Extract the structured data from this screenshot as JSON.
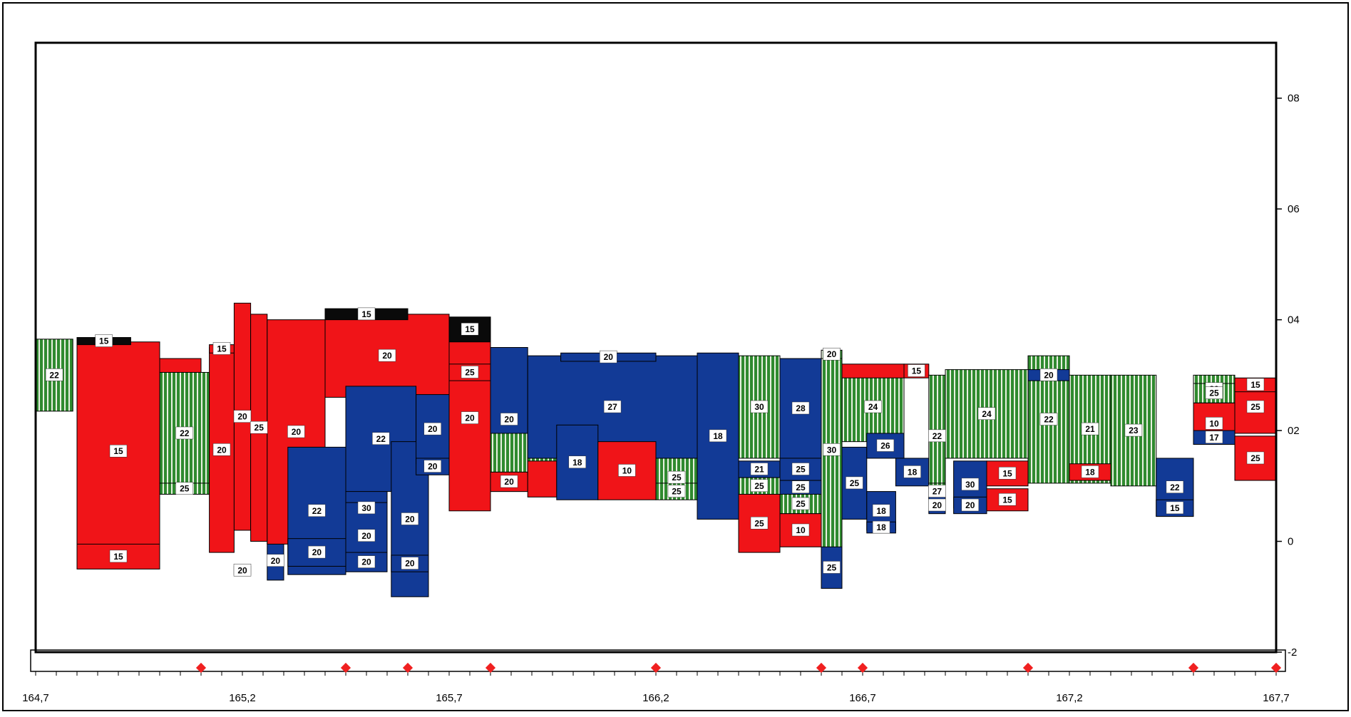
{
  "colors": {
    "red": "#f01418",
    "blue": "#123a96",
    "green": "#2f8a2f",
    "black": "#0a0a0a",
    "marker": "#f02020"
  },
  "chart_data": {
    "type": "bar",
    "title": "",
    "xlabel": "",
    "ylabel": "",
    "xlim": [
      164.7,
      167.7
    ],
    "ylim": [
      -2,
      9
    ],
    "x_ticks": [
      "164,7",
      "165,2",
      "165,7",
      "166,2",
      "166,7",
      "167,2",
      "167,7"
    ],
    "x_tick_values": [
      164.7,
      165.2,
      165.7,
      166.2,
      166.7,
      167.2,
      167.7
    ],
    "y_ticks": [
      "-2",
      "0",
      "02",
      "04",
      "06",
      "08"
    ],
    "y_tick_values": [
      -2,
      0,
      2,
      4,
      6,
      8
    ],
    "markers_x": [
      165.1,
      165.45,
      165.6,
      165.8,
      166.2,
      166.6,
      166.7,
      167.1,
      167.5,
      167.7
    ],
    "blocks": [
      {
        "x0": 164.7,
        "x1": 164.79,
        "y0": 2.35,
        "y1": 3.65,
        "fill": "green",
        "label": "22"
      },
      {
        "x0": 164.8,
        "x1": 165.0,
        "y0": -0.35,
        "y1": 3.6,
        "fill": "red",
        "label": "15"
      },
      {
        "x0": 164.8,
        "x1": 165.0,
        "y0": -0.5,
        "y1": -0.05,
        "fill": "red",
        "label": "15"
      },
      {
        "x0": 164.8,
        "x1": 164.93,
        "y0": 3.55,
        "y1": 3.68,
        "fill": "black",
        "label": "15"
      },
      {
        "x0": 165.0,
        "x1": 165.12,
        "y0": 0.85,
        "y1": 3.05,
        "fill": "green",
        "label": "22"
      },
      {
        "x0": 165.0,
        "x1": 165.1,
        "y0": 3.05,
        "y1": 3.3,
        "fill": "red",
        "label": ""
      },
      {
        "x0": 165.0,
        "x1": 165.12,
        "y0": 0.85,
        "y1": 1.05,
        "fill": "green",
        "label": "25"
      },
      {
        "x0": 165.12,
        "x1": 165.18,
        "y0": -0.2,
        "y1": 3.5,
        "fill": "red",
        "label": "20"
      },
      {
        "x0": 165.12,
        "x1": 165.18,
        "y0": 3.4,
        "y1": 3.55,
        "fill": "red",
        "label": "15"
      },
      {
        "x0": 165.18,
        "x1": 165.22,
        "y0": 0.2,
        "y1": 4.3,
        "fill": "red",
        "label": "20"
      },
      {
        "x0": 165.18,
        "x1": 165.22,
        "y0": -0.6,
        "y1": -0.45,
        "fill": "red",
        "label": "20"
      },
      {
        "x0": 165.22,
        "x1": 165.26,
        "y0": 0.0,
        "y1": 4.1,
        "fill": "red",
        "label": "25"
      },
      {
        "x0": 165.26,
        "x1": 165.3,
        "y0": -0.7,
        "y1": 0.0,
        "fill": "blue",
        "label": "20"
      },
      {
        "x0": 165.26,
        "x1": 165.4,
        "y0": -0.05,
        "y1": 4.0,
        "fill": "red",
        "label": "20"
      },
      {
        "x0": 165.31,
        "x1": 165.45,
        "y0": -0.6,
        "y1": 1.7,
        "fill": "blue",
        "label": "22"
      },
      {
        "x0": 165.4,
        "x1": 165.7,
        "y0": 2.6,
        "y1": 4.1,
        "fill": "red",
        "label": "20"
      },
      {
        "x0": 165.4,
        "x1": 165.6,
        "y0": 4.0,
        "y1": 4.2,
        "fill": "black",
        "label": "15"
      },
      {
        "x0": 165.45,
        "x1": 165.55,
        "y0": -0.5,
        "y1": 1.7,
        "fill": "blue",
        "label": "30"
      },
      {
        "x0": 165.45,
        "x1": 165.55,
        "y0": -0.5,
        "y1": 0.7,
        "fill": "blue",
        "label": "20"
      },
      {
        "x0": 165.45,
        "x1": 165.55,
        "y0": -0.55,
        "y1": -0.2,
        "fill": "blue",
        "label": "20"
      },
      {
        "x0": 165.31,
        "x1": 165.45,
        "y0": -0.45,
        "y1": 0.05,
        "fill": "blue",
        "label": "20"
      },
      {
        "x0": 165.45,
        "x1": 165.62,
        "y0": 0.9,
        "y1": 2.8,
        "fill": "blue",
        "label": "22"
      },
      {
        "x0": 165.56,
        "x1": 165.65,
        "y0": -1.0,
        "y1": 1.8,
        "fill": "blue",
        "label": "20"
      },
      {
        "x0": 165.56,
        "x1": 165.65,
        "y0": -0.55,
        "y1": -0.25,
        "fill": "blue",
        "label": "20"
      },
      {
        "x0": 165.62,
        "x1": 165.7,
        "y0": 1.4,
        "y1": 2.65,
        "fill": "blue",
        "label": "20"
      },
      {
        "x0": 165.62,
        "x1": 165.7,
        "y0": 1.2,
        "y1": 1.5,
        "fill": "blue",
        "label": "20"
      },
      {
        "x0": 165.7,
        "x1": 165.8,
        "y0": 0.55,
        "y1": 3.9,
        "fill": "red",
        "label": "20"
      },
      {
        "x0": 165.7,
        "x1": 165.8,
        "y0": 3.6,
        "y1": 4.05,
        "fill": "black",
        "label": "15"
      },
      {
        "x0": 165.7,
        "x1": 165.8,
        "y0": 2.9,
        "y1": 3.2,
        "fill": "red",
        "label": "25"
      },
      {
        "x0": 165.8,
        "x1": 165.89,
        "y0": 0.9,
        "y1": 3.5,
        "fill": "blue",
        "label": "20"
      },
      {
        "x0": 165.8,
        "x1": 165.89,
        "y0": 1.25,
        "y1": 1.95,
        "fill": "green",
        "label": ""
      },
      {
        "x0": 165.8,
        "x1": 165.89,
        "y0": 0.9,
        "y1": 1.25,
        "fill": "red",
        "label": "20"
      },
      {
        "x0": 165.89,
        "x1": 165.96,
        "y0": 1.2,
        "y1": 1.95,
        "fill": "green",
        "label": ""
      },
      {
        "x0": 165.89,
        "x1": 165.96,
        "y0": 0.8,
        "y1": 1.45,
        "fill": "red",
        "label": ""
      },
      {
        "x0": 165.89,
        "x1": 166.3,
        "y0": 1.5,
        "y1": 3.35,
        "fill": "blue",
        "label": "27"
      },
      {
        "x0": 165.96,
        "x1": 166.06,
        "y0": 0.75,
        "y1": 2.1,
        "fill": "blue",
        "label": "18"
      },
      {
        "x0": 166.06,
        "x1": 166.2,
        "y0": 0.75,
        "y1": 1.8,
        "fill": "red",
        "label": "10"
      },
      {
        "x0": 166.2,
        "x1": 166.3,
        "y0": 0.8,
        "y1": 1.5,
        "fill": "green",
        "label": "25"
      },
      {
        "x0": 166.2,
        "x1": 166.3,
        "y0": 0.75,
        "y1": 1.05,
        "fill": "green",
        "label": "25"
      },
      {
        "x0": 166.3,
        "x1": 166.4,
        "y0": 0.4,
        "y1": 3.4,
        "fill": "blue",
        "label": "18"
      },
      {
        "x0": 166.4,
        "x1": 166.5,
        "y0": 1.5,
        "y1": 3.35,
        "fill": "green",
        "label": "30"
      },
      {
        "x0": 166.4,
        "x1": 166.5,
        "y0": 1.15,
        "y1": 1.45,
        "fill": "blue",
        "label": "21"
      },
      {
        "x0": 166.4,
        "x1": 166.5,
        "y0": 0.85,
        "y1": 1.15,
        "fill": "green",
        "label": "25"
      },
      {
        "x0": 166.4,
        "x1": 166.5,
        "y0": -0.2,
        "y1": 0.85,
        "fill": "red",
        "label": "25"
      },
      {
        "x0": 166.5,
        "x1": 166.6,
        "y0": 1.5,
        "y1": 3.3,
        "fill": "blue",
        "label": "28"
      },
      {
        "x0": 166.5,
        "x1": 166.6,
        "y0": 1.1,
        "y1": 1.5,
        "fill": "blue",
        "label": "25"
      },
      {
        "x0": 166.5,
        "x1": 166.6,
        "y0": 0.85,
        "y1": 1.1,
        "fill": "blue",
        "label": "25"
      },
      {
        "x0": 166.5,
        "x1": 166.6,
        "y0": 0.5,
        "y1": 0.85,
        "fill": "green",
        "label": "25"
      },
      {
        "x0": 166.5,
        "x1": 166.6,
        "y0": -0.1,
        "y1": 0.5,
        "fill": "red",
        "label": "10"
      },
      {
        "x0": 166.6,
        "x1": 166.65,
        "y0": -0.15,
        "y1": 3.45,
        "fill": "green",
        "label": "30"
      },
      {
        "x0": 166.6,
        "x1": 166.65,
        "y0": 3.3,
        "y1": 3.45,
        "fill": "green",
        "label": "20"
      },
      {
        "x0": 166.6,
        "x1": 166.65,
        "y0": -0.85,
        "y1": -0.1,
        "fill": "blue",
        "label": "25"
      },
      {
        "x0": 166.65,
        "x1": 166.8,
        "y0": 1.8,
        "y1": 3.05,
        "fill": "green",
        "label": "24"
      },
      {
        "x0": 166.65,
        "x1": 166.8,
        "y0": 2.95,
        "y1": 3.2,
        "fill": "red",
        "label": ""
      },
      {
        "x0": 166.8,
        "x1": 166.86,
        "y0": 2.95,
        "y1": 3.2,
        "fill": "red",
        "label": "15"
      },
      {
        "x0": 166.65,
        "x1": 166.71,
        "y0": 0.4,
        "y1": 1.7,
        "fill": "blue",
        "label": "25"
      },
      {
        "x0": 166.71,
        "x1": 166.8,
        "y0": 1.5,
        "y1": 1.95,
        "fill": "blue",
        "label": "26"
      },
      {
        "x0": 166.78,
        "x1": 166.86,
        "y0": 1.0,
        "y1": 1.5,
        "fill": "blue",
        "label": "18"
      },
      {
        "x0": 166.71,
        "x1": 166.78,
        "y0": 0.2,
        "y1": 0.9,
        "fill": "blue",
        "label": "18"
      },
      {
        "x0": 166.71,
        "x1": 166.78,
        "y0": 0.15,
        "y1": 0.35,
        "fill": "blue",
        "label": "18"
      },
      {
        "x0": 166.86,
        "x1": 166.9,
        "y0": 0.8,
        "y1": 3.0,
        "fill": "green",
        "label": "22"
      },
      {
        "x0": 166.86,
        "x1": 166.9,
        "y0": 0.75,
        "y1": 1.05,
        "fill": "green",
        "label": "27"
      },
      {
        "x0": 166.86,
        "x1": 166.9,
        "y0": 0.5,
        "y1": 0.8,
        "fill": "blue",
        "label": "20"
      },
      {
        "x0": 166.9,
        "x1": 167.1,
        "y0": 1.5,
        "y1": 3.1,
        "fill": "green",
        "label": "24"
      },
      {
        "x0": 166.92,
        "x1": 167.0,
        "y0": 0.6,
        "y1": 1.45,
        "fill": "blue",
        "label": "30"
      },
      {
        "x0": 166.92,
        "x1": 167.0,
        "y0": 0.5,
        "y1": 0.8,
        "fill": "blue",
        "label": "20"
      },
      {
        "x0": 167.0,
        "x1": 167.1,
        "y0": 1.0,
        "y1": 1.45,
        "fill": "red",
        "label": "15"
      },
      {
        "x0": 167.0,
        "x1": 167.1,
        "y0": 0.55,
        "y1": 0.95,
        "fill": "red",
        "label": "15"
      },
      {
        "x0": 167.1,
        "x1": 167.2,
        "y0": 1.05,
        "y1": 3.35,
        "fill": "green",
        "label": "22"
      },
      {
        "x0": 167.2,
        "x1": 167.3,
        "y0": 1.05,
        "y1": 3.0,
        "fill": "green",
        "label": "21"
      },
      {
        "x0": 167.2,
        "x1": 167.3,
        "y0": 1.1,
        "y1": 1.4,
        "fill": "red",
        "label": "18"
      },
      {
        "x0": 167.3,
        "x1": 167.41,
        "y0": 1.0,
        "y1": 3.0,
        "fill": "green",
        "label": "23"
      },
      {
        "x0": 167.41,
        "x1": 167.5,
        "y0": 0.45,
        "y1": 1.5,
        "fill": "blue",
        "label": "22"
      },
      {
        "x0": 167.41,
        "x1": 167.5,
        "y0": 0.45,
        "y1": 0.75,
        "fill": "blue",
        "label": "15"
      },
      {
        "x0": 167.5,
        "x1": 167.6,
        "y0": 1.75,
        "y1": 2.5,
        "fill": "red",
        "label": "10"
      },
      {
        "x0": 167.5,
        "x1": 167.6,
        "y0": 1.75,
        "y1": 2.0,
        "fill": "blue",
        "label": "17"
      },
      {
        "x0": 167.5,
        "x1": 167.6,
        "y0": 2.5,
        "y1": 3.0,
        "fill": "green",
        "label": "20"
      },
      {
        "x0": 167.5,
        "x1": 167.6,
        "y0": 2.5,
        "y1": 2.85,
        "fill": "green",
        "label": "25"
      },
      {
        "x0": 167.6,
        "x1": 167.7,
        "y0": 1.95,
        "y1": 2.9,
        "fill": "red",
        "label": "25"
      },
      {
        "x0": 167.6,
        "x1": 167.7,
        "y0": 2.7,
        "y1": 2.95,
        "fill": "red",
        "label": "15"
      },
      {
        "x0": 167.6,
        "x1": 167.7,
        "y0": 1.1,
        "y1": 1.9,
        "fill": "red",
        "label": "25"
      },
      {
        "x0": 165.97,
        "x1": 166.2,
        "y0": 3.25,
        "y1": 3.4,
        "fill": "blue",
        "label": "20"
      },
      {
        "x0": 167.1,
        "x1": 167.2,
        "y0": 2.9,
        "y1": 3.1,
        "fill": "blue",
        "label": "20"
      }
    ]
  }
}
